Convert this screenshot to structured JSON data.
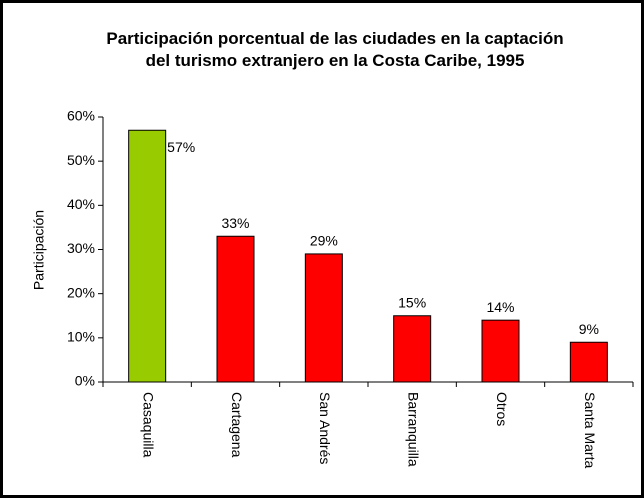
{
  "chart_data": {
    "type": "bar",
    "title": "Participación porcentual de las ciudades en la captación del turismo extranjero en la Costa Caribe, 1995",
    "y_label": "Participación",
    "categories": [
      "Casaquilla",
      "Cartagena",
      "San Andrés",
      "Barranquilla",
      "Otros",
      "Santa Marta"
    ],
    "values": [
      57,
      33,
      29,
      15,
      14,
      9
    ],
    "value_labels": [
      "57%",
      "33%",
      "29%",
      "15%",
      "14%",
      "9%"
    ],
    "colors": [
      "#99cc00",
      "#ff0000",
      "#ff0000",
      "#ff0000",
      "#ff0000",
      "#ff0000"
    ],
    "ylim": [
      0,
      60
    ],
    "yticks": [
      {
        "value": 0,
        "label": "0%"
      },
      {
        "value": 10,
        "label": "10%"
      },
      {
        "value": 20,
        "label": "20%"
      },
      {
        "value": 30,
        "label": "30%"
      },
      {
        "value": 40,
        "label": "40%"
      },
      {
        "value": 50,
        "label": "50%"
      },
      {
        "value": 60,
        "label": "60%"
      }
    ],
    "grid": false
  }
}
